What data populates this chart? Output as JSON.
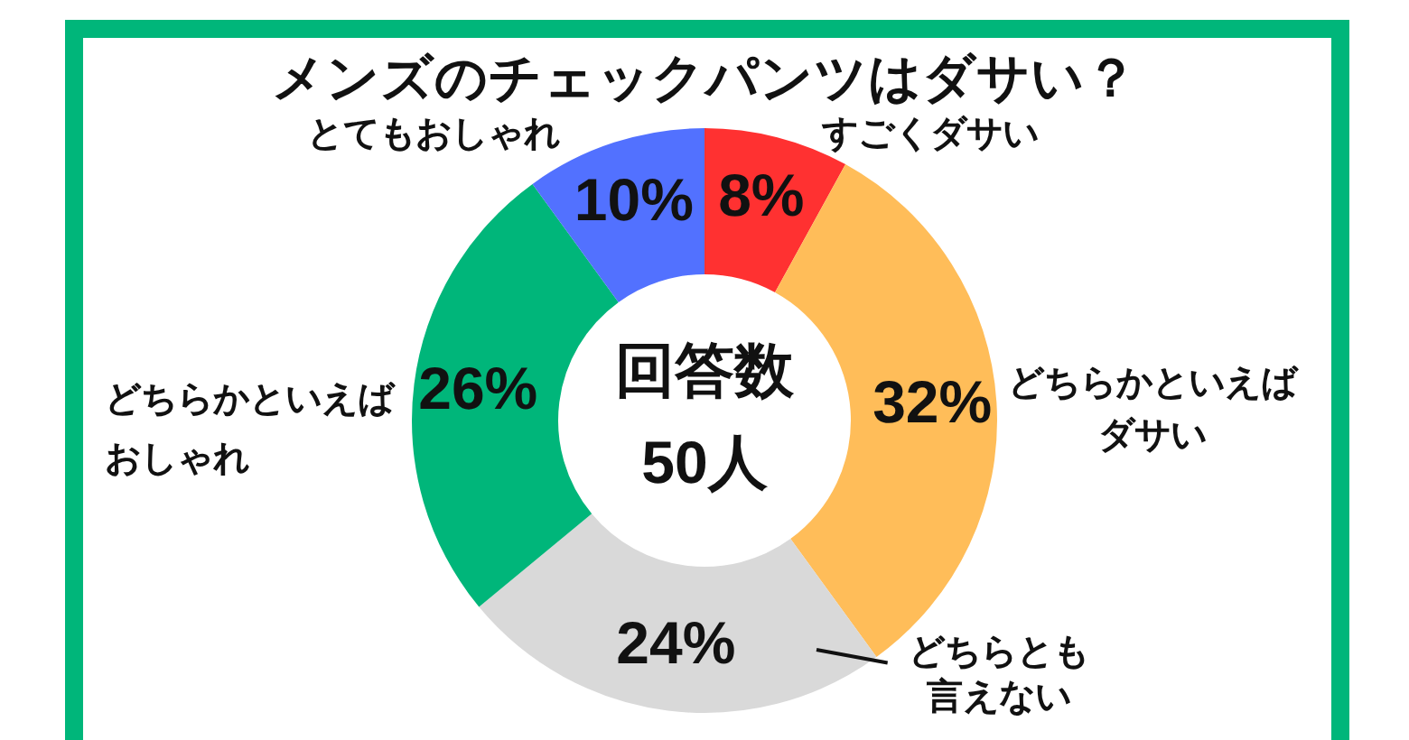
{
  "chart_data": {
    "type": "donut",
    "title": "メンズのチェックパンツはダサい？",
    "categories": [
      "すごくダサい",
      "どちらかといえばダサい",
      "どちらとも言えない",
      "どちらかといえばおしゃれ",
      "とてもおしゃれ"
    ],
    "values": [
      8,
      32,
      24,
      26,
      10
    ],
    "colors": [
      "#ff3131",
      "#ffbd59",
      "#d9d9d9",
      "#00b67a",
      "#5271ff"
    ],
    "value_labels": [
      "8%",
      "32%",
      "24%",
      "26%",
      "10%"
    ],
    "annotations": [
      "回答数",
      "50人"
    ]
  }
}
